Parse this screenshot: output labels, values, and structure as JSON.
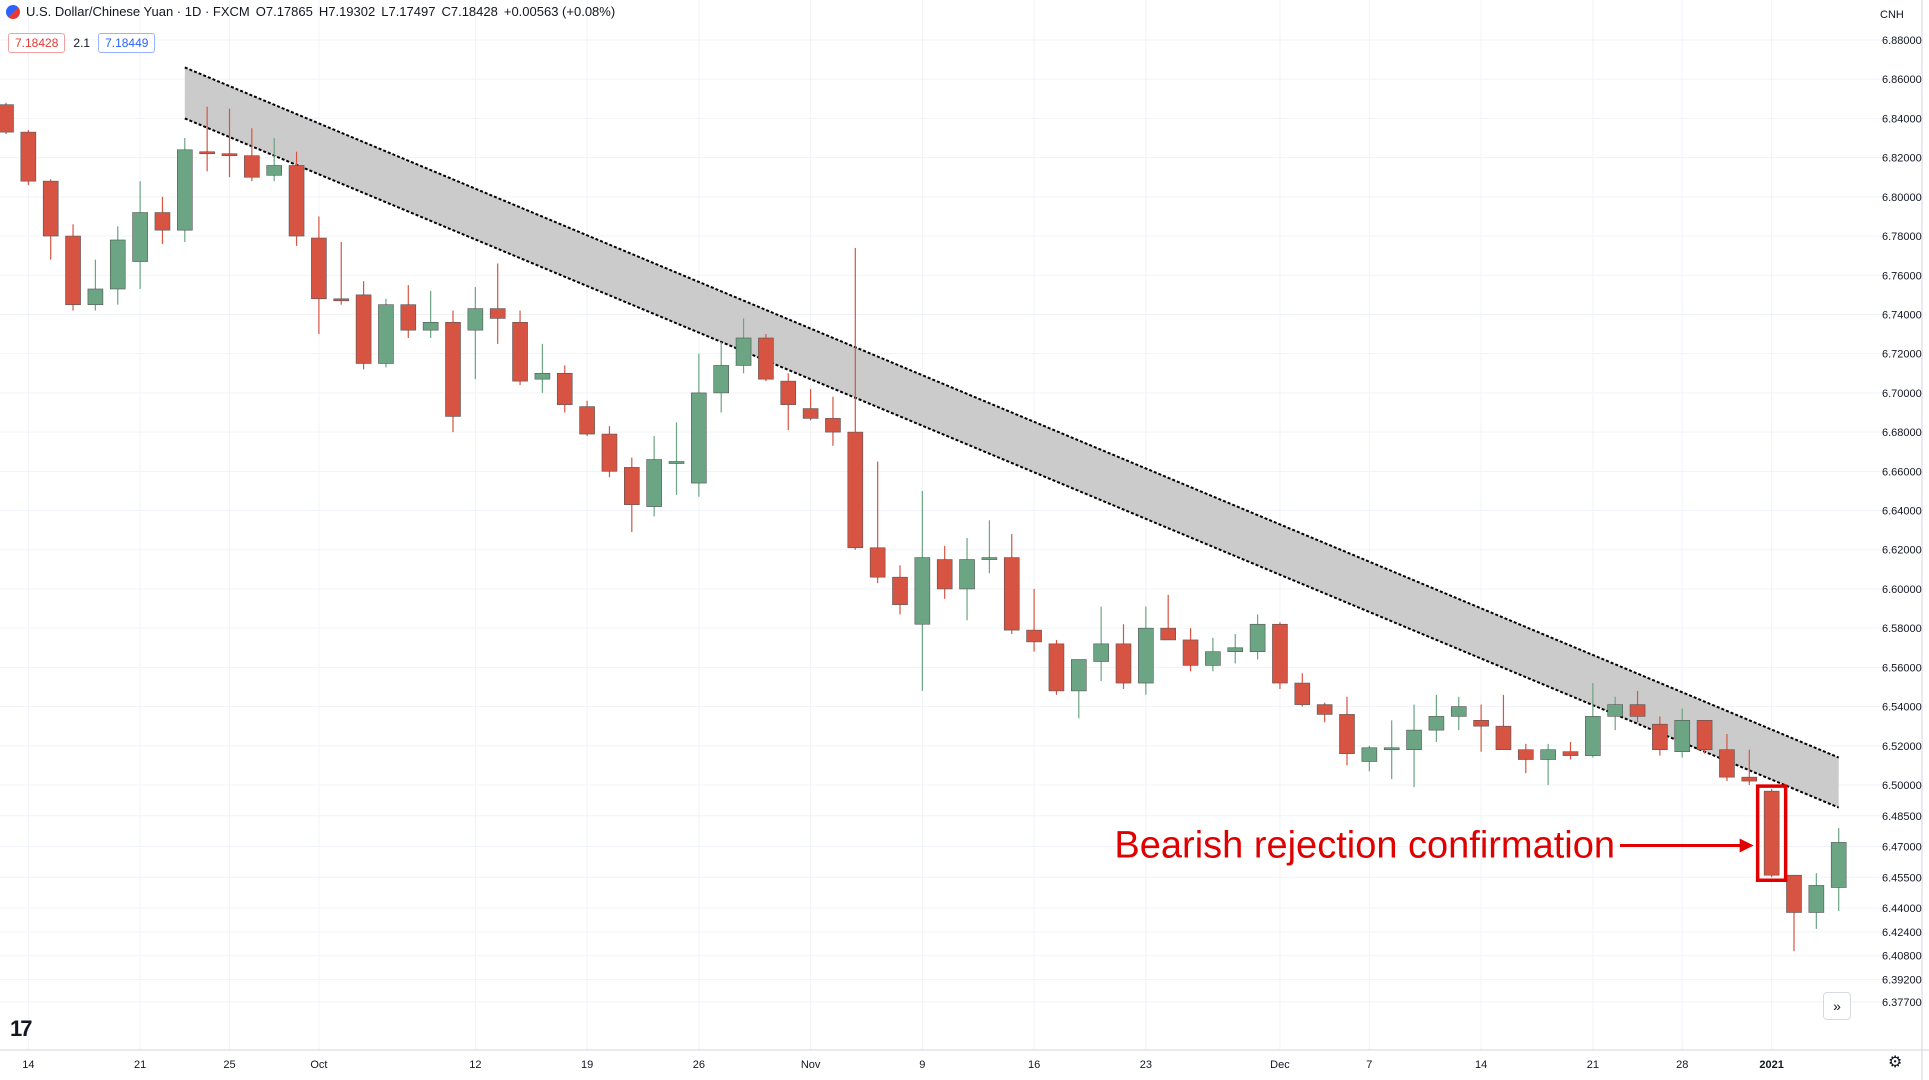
{
  "header": {
    "symbol_title": "U.S. Dollar/Chinese Yuan · 1D · FXCM",
    "ohlc": {
      "open": "O7.17865",
      "high": "H7.19302",
      "low": "L7.17497",
      "close": "C7.18428",
      "change": "+0.00563 (+0.08%)"
    },
    "bid": "7.18428",
    "spread": "2.1",
    "ask": "7.18449"
  },
  "axis": {
    "currency": "CNH",
    "scroll_icon": "double-chevron-right-icon",
    "settings_icon": "gear-icon",
    "logo_icon": "tradingview-logo-icon"
  },
  "colors": {
    "up": "#6ba583",
    "down": "#d75442",
    "channel_fill": "#c8c8c8",
    "annotation": "#e00000"
  },
  "chart_data": {
    "type": "candlestick",
    "title": "U.S. Dollar/Chinese Yuan · 1D · FXCM",
    "ylim": [
      6.365,
      6.885
    ],
    "y_ticks": [
      6.88,
      6.86,
      6.84,
      6.82,
      6.8,
      6.78,
      6.76,
      6.74,
      6.72,
      6.7,
      6.68,
      6.66,
      6.64,
      6.62,
      6.6,
      6.58,
      6.56,
      6.54,
      6.52,
      6.5,
      6.485,
      6.47,
      6.455,
      6.44,
      6.424,
      6.408,
      6.392,
      6.377
    ],
    "y_tick_labels": [
      "6.88000",
      "6.86000",
      "6.84000",
      "6.82000",
      "6.80000",
      "6.78000",
      "6.76000",
      "6.74000",
      "6.72000",
      "6.70000",
      "6.68000",
      "6.66000",
      "6.64000",
      "6.62000",
      "6.60000",
      "6.58000",
      "6.56000",
      "6.54000",
      "6.52000",
      "6.50000",
      "6.48500",
      "6.47000",
      "6.45500",
      "6.44000",
      "6.42400",
      "6.40800",
      "6.39200",
      "6.37700"
    ],
    "x_ticks": [
      {
        "label": "14",
        "index": 1
      },
      {
        "label": "21",
        "index": 6
      },
      {
        "label": "25",
        "index": 10
      },
      {
        "label": "Oct",
        "index": 14
      },
      {
        "label": "12",
        "index": 21
      },
      {
        "label": "19",
        "index": 26
      },
      {
        "label": "26",
        "index": 31
      },
      {
        "label": "Nov",
        "index": 36
      },
      {
        "label": "9",
        "index": 41
      },
      {
        "label": "16",
        "index": 46
      },
      {
        "label": "23",
        "index": 51
      },
      {
        "label": "Dec",
        "index": 57
      },
      {
        "label": "7",
        "index": 61
      },
      {
        "label": "14",
        "index": 66
      },
      {
        "label": "21",
        "index": 71
      },
      {
        "label": "28",
        "index": 75
      },
      {
        "label": "2021",
        "index": 79
      }
    ],
    "candles": [
      {
        "o": 6.847,
        "h": 6.848,
        "l": 6.832,
        "c": 6.833
      },
      {
        "o": 6.833,
        "h": 6.834,
        "l": 6.806,
        "c": 6.808
      },
      {
        "o": 6.808,
        "h": 6.809,
        "l": 6.768,
        "c": 6.78
      },
      {
        "o": 6.78,
        "h": 6.786,
        "l": 6.742,
        "c": 6.745
      },
      {
        "o": 6.745,
        "h": 6.768,
        "l": 6.742,
        "c": 6.753
      },
      {
        "o": 6.753,
        "h": 6.785,
        "l": 6.745,
        "c": 6.778
      },
      {
        "o": 6.767,
        "h": 6.808,
        "l": 6.753,
        "c": 6.792
      },
      {
        "o": 6.792,
        "h": 6.8,
        "l": 6.776,
        "c": 6.783
      },
      {
        "o": 6.783,
        "h": 6.83,
        "l": 6.777,
        "c": 6.824
      },
      {
        "o": 6.823,
        "h": 6.846,
        "l": 6.813,
        "c": 6.822
      },
      {
        "o": 6.822,
        "h": 6.845,
        "l": 6.81,
        "c": 6.821
      },
      {
        "o": 6.821,
        "h": 6.835,
        "l": 6.808,
        "c": 6.81
      },
      {
        "o": 6.811,
        "h": 6.83,
        "l": 6.808,
        "c": 6.816
      },
      {
        "o": 6.816,
        "h": 6.823,
        "l": 6.775,
        "c": 6.78
      },
      {
        "o": 6.779,
        "h": 6.79,
        "l": 6.73,
        "c": 6.748
      },
      {
        "o": 6.748,
        "h": 6.777,
        "l": 6.745,
        "c": 6.747
      },
      {
        "o": 6.75,
        "h": 6.757,
        "l": 6.712,
        "c": 6.715
      },
      {
        "o": 6.715,
        "h": 6.748,
        "l": 6.713,
        "c": 6.745
      },
      {
        "o": 6.745,
        "h": 6.755,
        "l": 6.728,
        "c": 6.732
      },
      {
        "o": 6.732,
        "h": 6.752,
        "l": 6.728,
        "c": 6.736
      },
      {
        "o": 6.736,
        "h": 6.742,
        "l": 6.68,
        "c": 6.688
      },
      {
        "o": 6.732,
        "h": 6.754,
        "l": 6.707,
        "c": 6.743
      },
      {
        "o": 6.743,
        "h": 6.766,
        "l": 6.725,
        "c": 6.738
      },
      {
        "o": 6.736,
        "h": 6.742,
        "l": 6.704,
        "c": 6.706
      },
      {
        "o": 6.707,
        "h": 6.725,
        "l": 6.7,
        "c": 6.71
      },
      {
        "o": 6.71,
        "h": 6.714,
        "l": 6.69,
        "c": 6.694
      },
      {
        "o": 6.693,
        "h": 6.696,
        "l": 6.678,
        "c": 6.679
      },
      {
        "o": 6.679,
        "h": 6.683,
        "l": 6.657,
        "c": 6.66
      },
      {
        "o": 6.662,
        "h": 6.667,
        "l": 6.629,
        "c": 6.643
      },
      {
        "o": 6.642,
        "h": 6.678,
        "l": 6.637,
        "c": 6.666
      },
      {
        "o": 6.665,
        "h": 6.685,
        "l": 6.648,
        "c": 6.665
      },
      {
        "o": 6.654,
        "h": 6.72,
        "l": 6.647,
        "c": 6.7
      },
      {
        "o": 6.7,
        "h": 6.726,
        "l": 6.69,
        "c": 6.714
      },
      {
        "o": 6.714,
        "h": 6.738,
        "l": 6.71,
        "c": 6.728
      },
      {
        "o": 6.728,
        "h": 6.73,
        "l": 6.706,
        "c": 6.707
      },
      {
        "o": 6.706,
        "h": 6.71,
        "l": 6.681,
        "c": 6.694
      },
      {
        "o": 6.692,
        "h": 6.702,
        "l": 6.686,
        "c": 6.687
      },
      {
        "o": 6.687,
        "h": 6.698,
        "l": 6.673,
        "c": 6.68
      },
      {
        "o": 6.68,
        "h": 6.774,
        "l": 6.62,
        "c": 6.621
      },
      {
        "o": 6.621,
        "h": 6.665,
        "l": 6.603,
        "c": 6.606
      },
      {
        "o": 6.606,
        "h": 6.612,
        "l": 6.587,
        "c": 6.592
      },
      {
        "o": 6.582,
        "h": 6.65,
        "l": 6.548,
        "c": 6.616
      },
      {
        "o": 6.615,
        "h": 6.622,
        "l": 6.595,
        "c": 6.6
      },
      {
        "o": 6.6,
        "h": 6.626,
        "l": 6.584,
        "c": 6.615
      },
      {
        "o": 6.615,
        "h": 6.635,
        "l": 6.608,
        "c": 6.616
      },
      {
        "o": 6.616,
        "h": 6.628,
        "l": 6.577,
        "c": 6.579
      },
      {
        "o": 6.579,
        "h": 6.6,
        "l": 6.568,
        "c": 6.573
      },
      {
        "o": 6.572,
        "h": 6.574,
        "l": 6.546,
        "c": 6.548
      },
      {
        "o": 6.548,
        "h": 6.563,
        "l": 6.534,
        "c": 6.564
      },
      {
        "o": 6.563,
        "h": 6.591,
        "l": 6.553,
        "c": 6.572
      },
      {
        "o": 6.572,
        "h": 6.582,
        "l": 6.549,
        "c": 6.552
      },
      {
        "o": 6.552,
        "h": 6.591,
        "l": 6.546,
        "c": 6.58
      },
      {
        "o": 6.58,
        "h": 6.597,
        "l": 6.574,
        "c": 6.574
      },
      {
        "o": 6.574,
        "h": 6.58,
        "l": 6.558,
        "c": 6.561
      },
      {
        "o": 6.561,
        "h": 6.575,
        "l": 6.558,
        "c": 6.568
      },
      {
        "o": 6.568,
        "h": 6.577,
        "l": 6.562,
        "c": 6.57
      },
      {
        "o": 6.568,
        "h": 6.587,
        "l": 6.564,
        "c": 6.582
      },
      {
        "o": 6.582,
        "h": 6.583,
        "l": 6.549,
        "c": 6.552
      },
      {
        "o": 6.552,
        "h": 6.557,
        "l": 6.54,
        "c": 6.541
      },
      {
        "o": 6.541,
        "h": 6.542,
        "l": 6.532,
        "c": 6.536
      },
      {
        "o": 6.536,
        "h": 6.545,
        "l": 6.51,
        "c": 6.516
      },
      {
        "o": 6.512,
        "h": 6.52,
        "l": 6.507,
        "c": 6.519
      },
      {
        "o": 6.518,
        "h": 6.533,
        "l": 6.503,
        "c": 6.519
      },
      {
        "o": 6.518,
        "h": 6.541,
        "l": 6.499,
        "c": 6.528
      },
      {
        "o": 6.528,
        "h": 6.546,
        "l": 6.522,
        "c": 6.535
      },
      {
        "o": 6.535,
        "h": 6.545,
        "l": 6.528,
        "c": 6.54
      },
      {
        "o": 6.533,
        "h": 6.541,
        "l": 6.517,
        "c": 6.53
      },
      {
        "o": 6.53,
        "h": 6.546,
        "l": 6.519,
        "c": 6.518
      },
      {
        "o": 6.518,
        "h": 6.521,
        "l": 6.506,
        "c": 6.513
      },
      {
        "o": 6.513,
        "h": 6.521,
        "l": 6.5,
        "c": 6.518
      },
      {
        "o": 6.517,
        "h": 6.522,
        "l": 6.513,
        "c": 6.515
      },
      {
        "o": 6.515,
        "h": 6.552,
        "l": 6.514,
        "c": 6.535
      },
      {
        "o": 6.535,
        "h": 6.545,
        "l": 6.528,
        "c": 6.541
      },
      {
        "o": 6.541,
        "h": 6.548,
        "l": 6.532,
        "c": 6.535
      },
      {
        "o": 6.531,
        "h": 6.535,
        "l": 6.515,
        "c": 6.518
      },
      {
        "o": 6.517,
        "h": 6.539,
        "l": 6.514,
        "c": 6.533
      },
      {
        "o": 6.533,
        "h": 6.533,
        "l": 6.516,
        "c": 6.518
      },
      {
        "o": 6.518,
        "h": 6.526,
        "l": 6.502,
        "c": 6.504
      },
      {
        "o": 6.504,
        "h": 6.518,
        "l": 6.5,
        "c": 6.502
      },
      {
        "o": 6.497,
        "h": 6.498,
        "l": 6.455,
        "c": 6.456
      },
      {
        "o": 6.456,
        "h": 6.456,
        "l": 6.411,
        "c": 6.437
      },
      {
        "o": 6.437,
        "h": 6.457,
        "l": 6.426,
        "c": 6.451
      },
      {
        "o": 6.45,
        "h": 6.479,
        "l": 6.438,
        "c": 6.472
      }
    ],
    "trend_channel": {
      "upper": [
        {
          "index": 8,
          "price": 6.866
        },
        {
          "index": 82,
          "price": 6.514
        }
      ],
      "lower": [
        {
          "index": 8,
          "price": 6.84
        },
        {
          "index": 82,
          "price": 6.489
        }
      ]
    },
    "highlighted_candle": 79,
    "annotation": {
      "text": "Bearish rejection confirmation",
      "points_to_candle": 79
    }
  }
}
